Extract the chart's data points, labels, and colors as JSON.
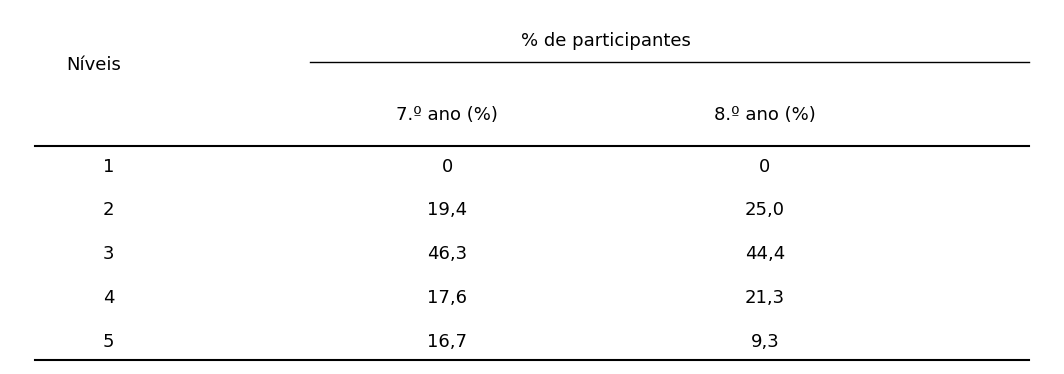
{
  "col_header_top": "% de participantes",
  "col_header_left": "Níveis",
  "col_header_sub1": "7.º ano (%)",
  "col_header_sub2": "8.º ano (%)",
  "rows": [
    [
      "1",
      "0",
      "0"
    ],
    [
      "2",
      "19,4",
      "25,0"
    ],
    [
      "3",
      "46,3",
      "44,4"
    ],
    [
      "4",
      "17,6",
      "21,3"
    ],
    [
      "5",
      "16,7",
      "9,3"
    ]
  ],
  "bg_color": "#ffffff",
  "text_color": "#000000",
  "font_size": 13,
  "fig_width": 10.64,
  "fig_height": 3.74
}
